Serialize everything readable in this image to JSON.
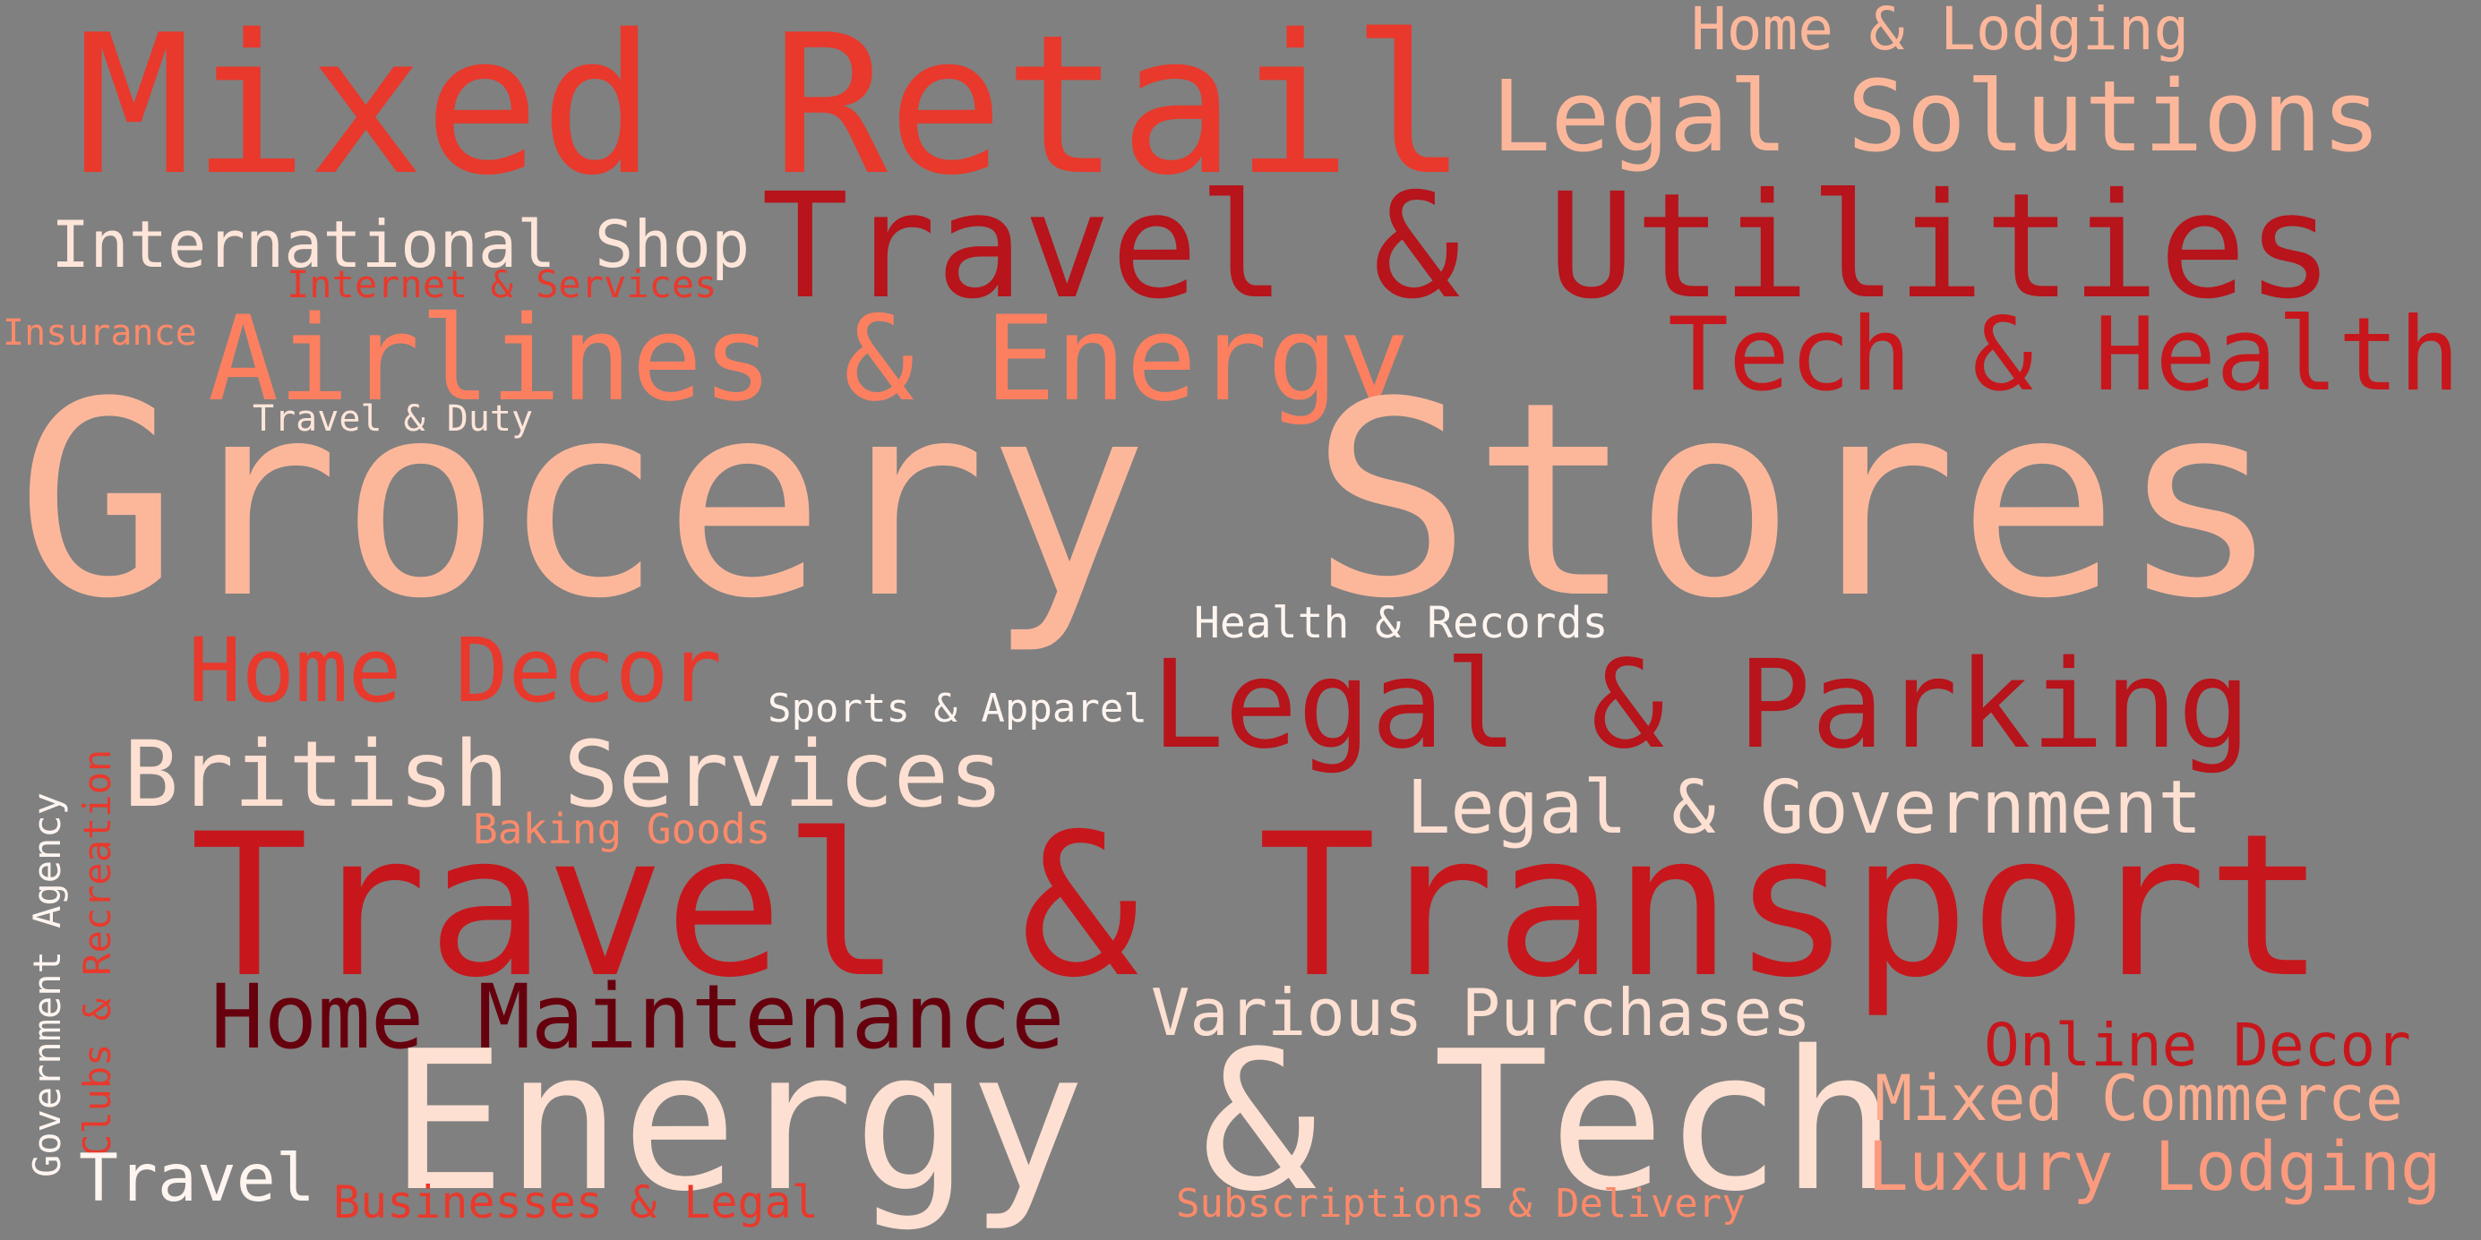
{
  "words": [
    {
      "text": "Mixed Retail",
      "color": "#e8392c"
    },
    {
      "text": "Home & Lodging",
      "color": "#fcb79b"
    },
    {
      "text": "Legal Solutions",
      "color": "#fcb79b"
    },
    {
      "text": "International Shop",
      "color": "#fee5d9"
    },
    {
      "text": "Travel & Utilities",
      "color": "#b7141b"
    },
    {
      "text": "Internet & Services",
      "color": "#e8392c"
    },
    {
      "text": "Insurance",
      "color": "#fc8a6a"
    },
    {
      "text": "Airlines & Energy",
      "color": "#fc8060"
    },
    {
      "text": "Tech & Health",
      "color": "#c7171c"
    },
    {
      "text": "Travel & Duty",
      "color": "#fee5d9"
    },
    {
      "text": "Grocery Stores",
      "color": "#fcb79b"
    },
    {
      "text": "Health & Records",
      "color": "#fff5f0"
    },
    {
      "text": "Home Decor",
      "color": "#e8392c"
    },
    {
      "text": "Sports & Apparel",
      "color": "#fff5f0"
    },
    {
      "text": "Legal & Parking",
      "color": "#b7141b"
    },
    {
      "text": "British Services",
      "color": "#fee0d2"
    },
    {
      "text": "Baking Goods",
      "color": "#fc8a6a"
    },
    {
      "text": "Legal & Government",
      "color": "#fee0d2"
    },
    {
      "text": "Government Agency",
      "color": "#fff5f0"
    },
    {
      "text": "Clubs & Recreation",
      "color": "#e8392c"
    },
    {
      "text": "Travel & Transport",
      "color": "#c7171c"
    },
    {
      "text": "Home Maintenance",
      "color": "#67000d"
    },
    {
      "text": "Various Purchases",
      "color": "#fee0d2"
    },
    {
      "text": "Online Decor",
      "color": "#c7171c"
    },
    {
      "text": "Energy & Tech",
      "color": "#fee0d2"
    },
    {
      "text": "Mixed Commerce",
      "color": "#fcad90"
    },
    {
      "text": "Luxury Lodging",
      "color": "#fc9a7e"
    },
    {
      "text": "Travel",
      "color": "#fff5f0"
    },
    {
      "text": "Businesses & Legal",
      "color": "#e8392c"
    },
    {
      "text": "Subscriptions & Delivery",
      "color": "#fc8a6a"
    }
  ]
}
